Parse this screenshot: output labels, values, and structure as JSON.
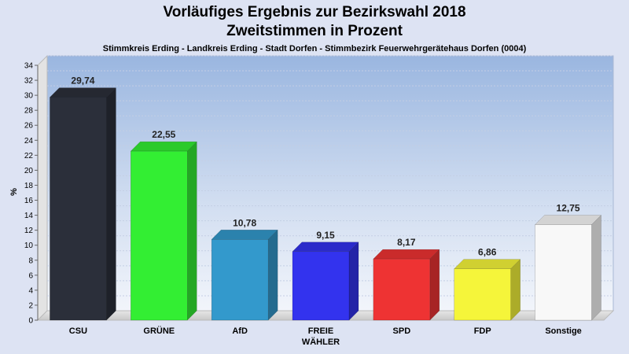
{
  "header": {
    "title_line1": "Vorläufiges Ergebnis zur Bezirkswahl 2018",
    "title_line2": "Zweitstimmen in Prozent",
    "subtitle": "Stimmkreis Erding - Landkreis Erding - Stadt Dorfen - Stimmbezirk Feuerwehrgerätehaus Dorfen (0004)"
  },
  "chart_data": {
    "type": "bar",
    "title": "Vorläufiges Ergebnis zur Bezirkswahl 2018 Zweitstimmen in Prozent",
    "subtitle": "Stimmkreis Erding - Landkreis Erding - Stadt Dorfen - Stimmbezirk Feuerwehrgerätehaus Dorfen (0004)",
    "xlabel": "",
    "ylabel": "%",
    "ylim": [
      0,
      34
    ],
    "ytick_step": 2,
    "grid": true,
    "categories": [
      [
        "CSU"
      ],
      [
        "GRÜNE"
      ],
      [
        "AfD"
      ],
      [
        "FREIE",
        "WÄHLER"
      ],
      [
        "SPD"
      ],
      [
        "FDP"
      ],
      [
        "Sonstige"
      ]
    ],
    "values": [
      29.74,
      22.55,
      10.78,
      9.15,
      8.17,
      6.86,
      12.75
    ],
    "value_labels": [
      "29,74",
      "22,55",
      "10,78",
      "9,15",
      "8,17",
      "6,86",
      "12,75"
    ],
    "colors": [
      "#2b2f3a",
      "#33ee33",
      "#3399cc",
      "#3333ee",
      "#ee3333",
      "#f5f53a",
      "#f8f8f8"
    ]
  }
}
